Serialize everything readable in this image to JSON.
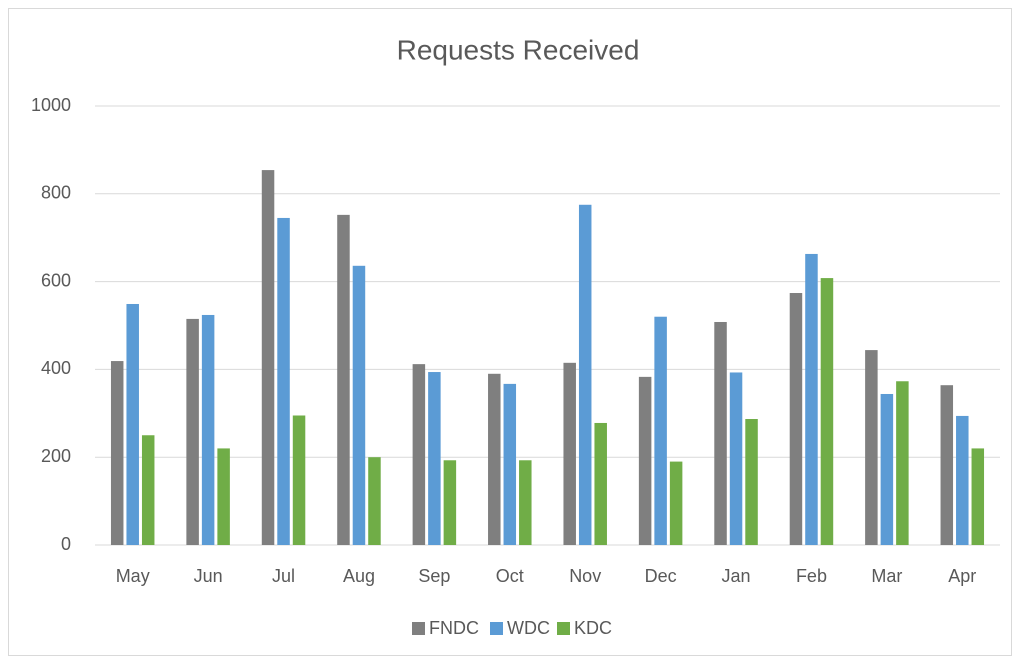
{
  "chart_data": {
    "type": "bar",
    "title": "Requests Received",
    "categories": [
      "May",
      "Jun",
      "Jul",
      "Aug",
      "Sep",
      "Oct",
      "Nov",
      "Dec",
      "Jan",
      "Feb",
      "Mar",
      "Apr"
    ],
    "series": [
      {
        "name": "FNDC",
        "color": "#7f7f7f",
        "values": [
          419,
          515,
          854,
          752,
          412,
          390,
          415,
          383,
          508,
          574,
          444,
          364
        ]
      },
      {
        "name": "WDC",
        "color": "#5b9bd5",
        "values": [
          549,
          524,
          745,
          636,
          394,
          367,
          775,
          520,
          393,
          663,
          344,
          294
        ]
      },
      {
        "name": "KDC",
        "color": "#70ad47",
        "values": [
          250,
          220,
          295,
          200,
          193,
          193,
          278,
          190,
          287,
          608,
          373,
          220
        ]
      }
    ],
    "ylim": [
      0,
      1000
    ],
    "yticks": [
      0,
      200,
      400,
      600,
      800,
      1000
    ],
    "grid": true,
    "legend": "bottom"
  }
}
